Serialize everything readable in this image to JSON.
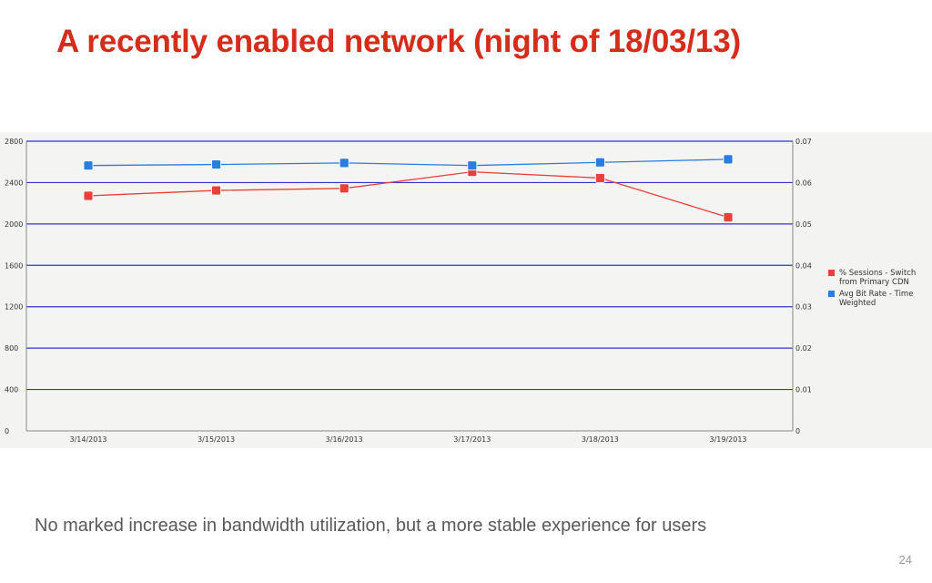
{
  "slide": {
    "title": "A recently enabled network (night of 18/03/13)",
    "caption": "No marked increase in bandwidth utilization, but a more stable experience for users",
    "page_number": "24"
  },
  "colors": {
    "title": "#d42d1c",
    "series_red": "#e8413a",
    "series_blue": "#2b7de0",
    "gridline": "#3333cc"
  },
  "chart_data": {
    "type": "line",
    "title": "",
    "xlabel": "",
    "ylabel": "",
    "categories": [
      "3/14/2013",
      "3/15/2013",
      "3/16/2013",
      "3/17/2013",
      "3/18/2013",
      "3/19/2013"
    ],
    "y_left": {
      "range": [
        0,
        2800
      ],
      "ticks": [
        "0",
        "400",
        "800",
        "1200",
        "1600",
        "2000",
        "2400",
        "2800"
      ]
    },
    "y_right": {
      "range": [
        0,
        0.07
      ],
      "ticks": [
        "0",
        "0.01",
        "0.02",
        "0.03",
        "0.04",
        "0.05",
        "0.06",
        "0.07"
      ]
    },
    "grid": true,
    "legend_position": "right",
    "series": [
      {
        "name_lines": [
          "% Sessions - Switch",
          "from Primary CDN"
        ],
        "axis": "right",
        "color": "#e8413a",
        "values": [
          0.0568,
          0.0581,
          0.0586,
          0.0626,
          0.0611,
          0.0516
        ]
      },
      {
        "name_lines": [
          "Avg Bit Rate - Time",
          "Weighted"
        ],
        "axis": "left",
        "color": "#2b7de0",
        "values": [
          2565,
          2575,
          2590,
          2565,
          2595,
          2625
        ]
      }
    ]
  }
}
